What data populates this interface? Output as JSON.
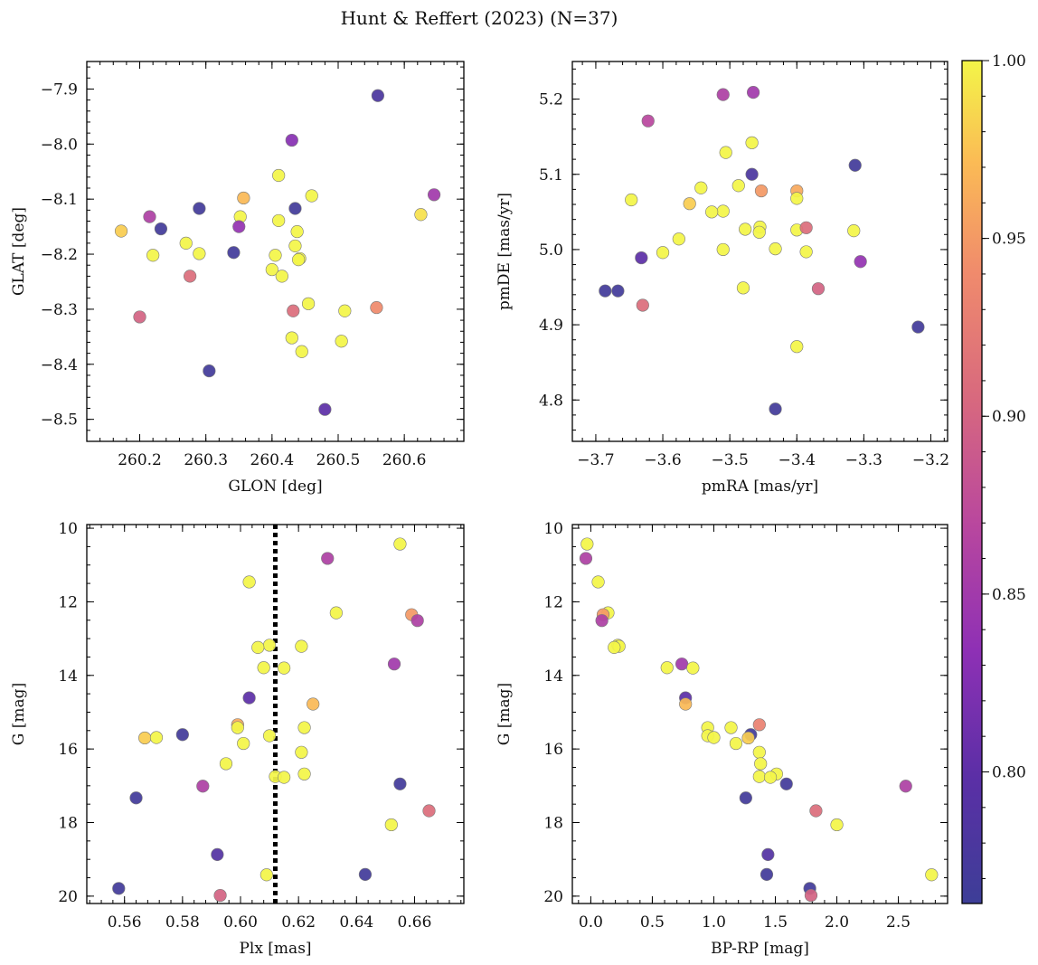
{
  "figure": {
    "title": "Hunt & Reffert (2023) (N=37)"
  },
  "colorbar": {
    "colormap": "plasma",
    "range": [
      0.763,
      1.0
    ],
    "ticks": [
      0.8,
      0.85,
      0.9,
      0.95,
      1.0
    ],
    "tick_labels": [
      "0.80",
      "0.85",
      "0.90",
      "0.95",
      "1.00"
    ]
  },
  "chart_data": [
    {
      "type": "scatter",
      "xlabel": "GLON [deg]",
      "ylabel": "GLAT [deg]",
      "xlim": [
        260.12,
        260.69
      ],
      "ylim": [
        -8.54,
        -7.85
      ],
      "xticks": [
        260.2,
        260.3,
        260.4,
        260.5,
        260.6
      ],
      "xtick_labels": [
        "260.2",
        "260.3",
        "260.4",
        "260.5",
        "260.6"
      ],
      "yticks": [
        -7.9,
        -8.0,
        -8.1,
        -8.2,
        -8.3,
        -8.4,
        -8.5
      ],
      "ytick_labels": [
        "−7.9",
        "−8.0",
        "−8.1",
        "−8.2",
        "−8.3",
        "−8.4",
        "−8.5"
      ],
      "points": [
        {
          "x": 260.56,
          "y": -7.912,
          "c": 0.78
        },
        {
          "x": 260.43,
          "y": -7.993,
          "c": 0.83
        },
        {
          "x": 260.41,
          "y": -8.057,
          "c": 1.0
        },
        {
          "x": 260.645,
          "y": -8.092,
          "c": 0.85
        },
        {
          "x": 260.46,
          "y": -8.094,
          "c": 1.0
        },
        {
          "x": 260.357,
          "y": -8.098,
          "c": 0.97
        },
        {
          "x": 260.29,
          "y": -8.117,
          "c": 0.77
        },
        {
          "x": 260.435,
          "y": -8.117,
          "c": 0.77
        },
        {
          "x": 260.625,
          "y": -8.128,
          "c": 0.99
        },
        {
          "x": 260.215,
          "y": -8.132,
          "c": 0.86
        },
        {
          "x": 260.352,
          "y": -8.132,
          "c": 1.0
        },
        {
          "x": 260.41,
          "y": -8.139,
          "c": 1.0
        },
        {
          "x": 260.35,
          "y": -8.15,
          "c": 0.84
        },
        {
          "x": 260.232,
          "y": -8.154,
          "c": 0.77
        },
        {
          "x": 260.172,
          "y": -8.158,
          "c": 0.98
        },
        {
          "x": 260.438,
          "y": -8.159,
          "c": 1.0
        },
        {
          "x": 260.27,
          "y": -8.18,
          "c": 1.0
        },
        {
          "x": 260.435,
          "y": -8.185,
          "c": 1.0
        },
        {
          "x": 260.342,
          "y": -8.197,
          "c": 0.77
        },
        {
          "x": 260.29,
          "y": -8.199,
          "c": 1.0
        },
        {
          "x": 260.405,
          "y": -8.202,
          "c": 1.0
        },
        {
          "x": 260.442,
          "y": -8.208,
          "c": 1.0
        },
        {
          "x": 260.44,
          "y": -8.21,
          "c": 1.0
        },
        {
          "x": 260.4,
          "y": -8.228,
          "c": 1.0
        },
        {
          "x": 260.415,
          "y": -8.24,
          "c": 1.0
        },
        {
          "x": 260.276,
          "y": -8.24,
          "c": 0.91
        },
        {
          "x": 260.455,
          "y": -8.29,
          "c": 1.0
        },
        {
          "x": 260.558,
          "y": -8.297,
          "c": 0.94
        },
        {
          "x": 260.432,
          "y": -8.303,
          "c": 0.91
        },
        {
          "x": 260.51,
          "y": -8.303,
          "c": 1.0
        },
        {
          "x": 260.2,
          "y": -8.314,
          "c": 0.9
        },
        {
          "x": 260.43,
          "y": -8.352,
          "c": 1.0
        },
        {
          "x": 260.505,
          "y": -8.358,
          "c": 1.0
        },
        {
          "x": 260.445,
          "y": -8.377,
          "c": 1.0
        },
        {
          "x": 260.305,
          "y": -8.412,
          "c": 0.77
        },
        {
          "x": 260.48,
          "y": -8.482,
          "c": 0.8
        },
        {
          "x": 260.22,
          "y": -8.202,
          "c": 1.0
        }
      ]
    },
    {
      "type": "scatter",
      "xlabel": "pmRA [mas/yr]",
      "ylabel": "pmDE [mas/yr]",
      "xlim": [
        -3.735,
        -3.175
      ],
      "ylim": [
        4.745,
        5.25
      ],
      "xticks": [
        -3.7,
        -3.6,
        -3.5,
        -3.4,
        -3.3,
        -3.2
      ],
      "xtick_labels": [
        "−3.7",
        "−3.6",
        "−3.5",
        "−3.4",
        "−3.3",
        "−3.2"
      ],
      "yticks": [
        4.8,
        4.9,
        5.0,
        5.1,
        5.2
      ],
      "ytick_labels": [
        "4.8",
        "4.9",
        "5.0",
        "5.1",
        "5.2"
      ],
      "points": [
        {
          "x": -3.465,
          "y": 5.209,
          "c": 0.85
        },
        {
          "x": -3.51,
          "y": 5.206,
          "c": 0.86
        },
        {
          "x": -3.622,
          "y": 5.171,
          "c": 0.87
        },
        {
          "x": -3.467,
          "y": 5.142,
          "c": 1.0
        },
        {
          "x": -3.506,
          "y": 5.129,
          "c": 1.0
        },
        {
          "x": -3.313,
          "y": 5.112,
          "c": 0.77
        },
        {
          "x": -3.467,
          "y": 5.1,
          "c": 0.78
        },
        {
          "x": -3.487,
          "y": 5.085,
          "c": 1.0
        },
        {
          "x": -3.543,
          "y": 5.082,
          "c": 1.0
        },
        {
          "x": -3.453,
          "y": 5.078,
          "c": 0.95
        },
        {
          "x": -3.4,
          "y": 5.078,
          "c": 0.96
        },
        {
          "x": -3.4,
          "y": 5.068,
          "c": 1.0
        },
        {
          "x": -3.647,
          "y": 5.066,
          "c": 1.0
        },
        {
          "x": -3.56,
          "y": 5.061,
          "c": 0.98
        },
        {
          "x": -3.51,
          "y": 5.051,
          "c": 1.0
        },
        {
          "x": -3.527,
          "y": 5.05,
          "c": 1.0
        },
        {
          "x": -3.455,
          "y": 5.03,
          "c": 1.0
        },
        {
          "x": -3.477,
          "y": 5.027,
          "c": 1.0
        },
        {
          "x": -3.4,
          "y": 5.026,
          "c": 1.0
        },
        {
          "x": -3.315,
          "y": 5.025,
          "c": 1.0
        },
        {
          "x": -3.456,
          "y": 5.023,
          "c": 1.0
        },
        {
          "x": -3.576,
          "y": 5.014,
          "c": 1.0
        },
        {
          "x": -3.386,
          "y": 5.029,
          "c": 0.91
        },
        {
          "x": -3.51,
          "y": 5.0,
          "c": 1.0
        },
        {
          "x": -3.432,
          "y": 5.001,
          "c": 1.0
        },
        {
          "x": -3.6,
          "y": 4.996,
          "c": 1.0
        },
        {
          "x": -3.386,
          "y": 4.997,
          "c": 1.0
        },
        {
          "x": -3.632,
          "y": 4.989,
          "c": 0.8
        },
        {
          "x": -3.305,
          "y": 4.984,
          "c": 0.84
        },
        {
          "x": -3.48,
          "y": 4.949,
          "c": 1.0
        },
        {
          "x": -3.368,
          "y": 4.948,
          "c": 0.9
        },
        {
          "x": -3.686,
          "y": 4.945,
          "c": 0.77
        },
        {
          "x": -3.667,
          "y": 4.945,
          "c": 0.77
        },
        {
          "x": -3.63,
          "y": 4.926,
          "c": 0.91
        },
        {
          "x": -3.219,
          "y": 4.897,
          "c": 0.77
        },
        {
          "x": -3.4,
          "y": 4.871,
          "c": 1.0
        },
        {
          "x": -3.432,
          "y": 4.788,
          "c": 0.77
        }
      ]
    },
    {
      "type": "scatter",
      "xlabel": "Plx [mas]",
      "ylabel": "G [mag]",
      "xlim": [
        0.547,
        0.677
      ],
      "ylim": [
        20.2,
        9.9
      ],
      "y_inverted": true,
      "vline_x": 0.612,
      "xticks": [
        0.56,
        0.58,
        0.6,
        0.62,
        0.64,
        0.66
      ],
      "xtick_labels": [
        "0.56",
        "0.58",
        "0.60",
        "0.62",
        "0.64",
        "0.66"
      ],
      "yticks": [
        10,
        12,
        14,
        16,
        18,
        20
      ],
      "ytick_labels": [
        "10",
        "12",
        "14",
        "16",
        "18",
        "20"
      ],
      "points": [
        {
          "x": 0.655,
          "y": 10.43,
          "c": 1.0
        },
        {
          "x": 0.63,
          "y": 10.82,
          "c": 0.86
        },
        {
          "x": 0.603,
          "y": 11.46,
          "c": 1.0
        },
        {
          "x": 0.633,
          "y": 12.3,
          "c": 1.0
        },
        {
          "x": 0.659,
          "y": 12.35,
          "c": 0.95
        },
        {
          "x": 0.661,
          "y": 12.51,
          "c": 0.86
        },
        {
          "x": 0.61,
          "y": 13.18,
          "c": 1.0
        },
        {
          "x": 0.621,
          "y": 13.21,
          "c": 1.0
        },
        {
          "x": 0.606,
          "y": 13.24,
          "c": 1.0
        },
        {
          "x": 0.653,
          "y": 13.69,
          "c": 0.85
        },
        {
          "x": 0.608,
          "y": 13.79,
          "c": 1.0
        },
        {
          "x": 0.615,
          "y": 13.8,
          "c": 1.0
        },
        {
          "x": 0.603,
          "y": 14.61,
          "c": 0.8
        },
        {
          "x": 0.625,
          "y": 14.78,
          "c": 0.97
        },
        {
          "x": 0.599,
          "y": 15.34,
          "c": 0.96
        },
        {
          "x": 0.599,
          "y": 15.42,
          "c": 1.0
        },
        {
          "x": 0.622,
          "y": 15.42,
          "c": 1.0
        },
        {
          "x": 0.58,
          "y": 15.61,
          "c": 0.77
        },
        {
          "x": 0.61,
          "y": 15.64,
          "c": 1.0
        },
        {
          "x": 0.567,
          "y": 15.7,
          "c": 0.98
        },
        {
          "x": 0.571,
          "y": 15.69,
          "c": 1.0
        },
        {
          "x": 0.601,
          "y": 15.85,
          "c": 1.0
        },
        {
          "x": 0.621,
          "y": 16.09,
          "c": 1.0
        },
        {
          "x": 0.595,
          "y": 16.4,
          "c": 1.0
        },
        {
          "x": 0.622,
          "y": 16.68,
          "c": 1.0
        },
        {
          "x": 0.612,
          "y": 16.75,
          "c": 1.0
        },
        {
          "x": 0.615,
          "y": 16.77,
          "c": 1.0
        },
        {
          "x": 0.655,
          "y": 16.95,
          "c": 0.77
        },
        {
          "x": 0.587,
          "y": 17.01,
          "c": 0.86
        },
        {
          "x": 0.564,
          "y": 17.33,
          "c": 0.77
        },
        {
          "x": 0.665,
          "y": 17.68,
          "c": 0.91
        },
        {
          "x": 0.652,
          "y": 18.06,
          "c": 1.0
        },
        {
          "x": 0.592,
          "y": 18.87,
          "c": 0.79
        },
        {
          "x": 0.609,
          "y": 19.42,
          "c": 1.0
        },
        {
          "x": 0.643,
          "y": 19.41,
          "c": 0.77
        },
        {
          "x": 0.558,
          "y": 19.79,
          "c": 0.77
        },
        {
          "x": 0.593,
          "y": 19.98,
          "c": 0.9
        }
      ]
    },
    {
      "type": "scatter",
      "xlabel": "BP-RP [mag]",
      "ylabel": "G [mag]",
      "xlim": [
        -0.15,
        2.9
      ],
      "ylim": [
        20.2,
        9.9
      ],
      "y_inverted": true,
      "xticks": [
        0.0,
        0.5,
        1.0,
        1.5,
        2.0,
        2.5
      ],
      "xtick_labels": [
        "0.0",
        "0.5",
        "1.0",
        "1.5",
        "2.0",
        "2.5"
      ],
      "yticks": [
        10,
        12,
        14,
        16,
        18,
        20
      ],
      "ytick_labels": [
        "10",
        "12",
        "14",
        "16",
        "18",
        "20"
      ],
      "points": [
        {
          "x": -0.03,
          "y": 10.43,
          "c": 1.0
        },
        {
          "x": -0.04,
          "y": 10.82,
          "c": 0.86
        },
        {
          "x": 0.06,
          "y": 11.46,
          "c": 1.0
        },
        {
          "x": 0.14,
          "y": 12.3,
          "c": 1.0
        },
        {
          "x": 0.1,
          "y": 12.35,
          "c": 0.95
        },
        {
          "x": 0.09,
          "y": 12.51,
          "c": 0.86
        },
        {
          "x": 0.22,
          "y": 13.18,
          "c": 1.0
        },
        {
          "x": 0.23,
          "y": 13.21,
          "c": 1.0
        },
        {
          "x": 0.19,
          "y": 13.24,
          "c": 1.0
        },
        {
          "x": 0.74,
          "y": 13.69,
          "c": 0.85
        },
        {
          "x": 0.62,
          "y": 13.79,
          "c": 1.0
        },
        {
          "x": 0.83,
          "y": 13.8,
          "c": 1.0
        },
        {
          "x": 0.77,
          "y": 14.61,
          "c": 0.8
        },
        {
          "x": 0.77,
          "y": 14.78,
          "c": 0.97
        },
        {
          "x": 1.37,
          "y": 15.34,
          "c": 0.93
        },
        {
          "x": 0.95,
          "y": 15.42,
          "c": 1.0
        },
        {
          "x": 1.14,
          "y": 15.42,
          "c": 1.0
        },
        {
          "x": 1.3,
          "y": 15.61,
          "c": 0.77
        },
        {
          "x": 0.95,
          "y": 15.64,
          "c": 1.0
        },
        {
          "x": 1.28,
          "y": 15.7,
          "c": 0.98
        },
        {
          "x": 1.0,
          "y": 15.69,
          "c": 1.0
        },
        {
          "x": 1.18,
          "y": 15.85,
          "c": 1.0
        },
        {
          "x": 1.37,
          "y": 16.09,
          "c": 1.0
        },
        {
          "x": 1.38,
          "y": 16.4,
          "c": 1.0
        },
        {
          "x": 1.51,
          "y": 16.68,
          "c": 1.0
        },
        {
          "x": 1.37,
          "y": 16.75,
          "c": 1.0
        },
        {
          "x": 1.46,
          "y": 16.77,
          "c": 1.0
        },
        {
          "x": 1.59,
          "y": 16.95,
          "c": 0.77
        },
        {
          "x": 2.56,
          "y": 17.01,
          "c": 0.86
        },
        {
          "x": 1.26,
          "y": 17.33,
          "c": 0.77
        },
        {
          "x": 1.83,
          "y": 17.68,
          "c": 0.91
        },
        {
          "x": 2.0,
          "y": 18.06,
          "c": 1.0
        },
        {
          "x": 1.44,
          "y": 18.87,
          "c": 0.79
        },
        {
          "x": 2.77,
          "y": 19.42,
          "c": 1.0
        },
        {
          "x": 1.43,
          "y": 19.41,
          "c": 0.77
        },
        {
          "x": 1.78,
          "y": 19.79,
          "c": 0.77
        },
        {
          "x": 1.79,
          "y": 19.98,
          "c": 0.9
        }
      ]
    }
  ]
}
